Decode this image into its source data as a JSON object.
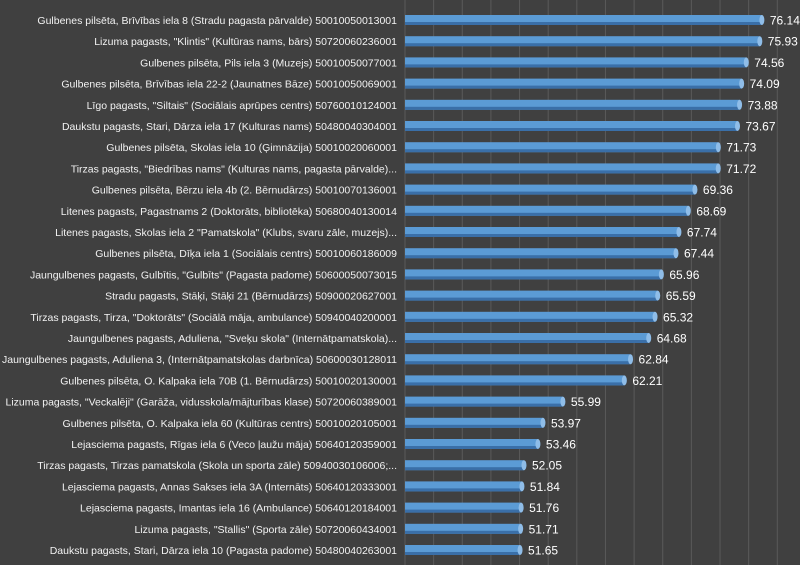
{
  "chart_data": {
    "type": "bar",
    "orientation": "horizontal",
    "title": "",
    "xlabel": "",
    "ylabel": "",
    "grid": true,
    "xlim": [
      40,
      80
    ],
    "categories": [
      "Gulbenes pilsēta, Brīvības iela 8 (Stradu pagasta pārvalde) 50010050013001",
      "Lizuma pagasts, \"Klintis\" (Kultūras nams, bārs) 50720060236001",
      "Gulbenes pilsēta, Pils iela 3 (Muzejs) 50010050077001",
      "Gulbenes pilsēta, Brīvības iela 22-2 (Jaunatnes Bāze) 50010050069001",
      "Līgo pagasts, \"Siltais\" (Sociālais aprūpes centrs) 50760010124001",
      "Daukstu pagasts, Stari, Dārza iela 17 (Kulturas nams) 50480040304001",
      "Gulbenes pilsēta, Skolas iela 10 (Ģimnāzija) 50010020060001",
      "Tirzas pagasts, \"Biedrības nams\" (Kulturas nams, pagasta pārvalde)...",
      "Gulbenes pilsēta, Bērzu iela 4b (2. Bērnudārzs) 50010070136001",
      "Litenes pagasts, Pagastnams 2 (Doktorāts, bibliotēka) 50680040130014",
      "Litenes pagasts, Skolas iela 2 \"Pamatskola\" (Klubs, svaru zāle, muzejs)...",
      "Gulbenes pilsēta, Dīķa iela 1 (Sociālais centrs) 50010060186009",
      "Jaungulbenes pagasts, Gulbītis, \"Gulbīts\" (Pagasta padome) 50600050073015",
      "Stradu pagasts, Stāķi, Stāķi 21 (Bērnudārzs) 50900020627001",
      "Tirzas pagasts, Tirza, \"Doktorāts\" (Sociālā māja, ambulance) 50940040200001",
      "Jaungulbenes pagasts, Aduliena, \"Sveķu skola\" (Internātpamatskola)...",
      "Jaungulbenes pagasts, Aduliena 3, (Internātpamatskolas darbnīca) 50600030128011",
      "Gulbenes pilsēta, O. Kalpaka iela 70B (1. Bērnudārzs) 50010020130001",
      "Lizuma pagasts, \"Veckalēji\" (Garāža, vidusskola/mājturības klase) 50720060389001",
      "Gulbenes pilsēta, O. Kalpaka iela 60 (Kultūras centrs) 50010020105001",
      "Lejasciema pagasts, Rīgas iela 6 (Veco ļaužu māja) 50640120359001",
      "Tirzas pagasts, Tirzas pamatskola (Skola un sporta zāle) 50940030106006;...",
      "Lejasciema pagasts, Annas Sakses iela 3A (Internāts) 50640120333001",
      "Lejasciema pagasts, Imantas iela 16 (Ambulance) 50640120184001",
      "Lizuma pagasts, \"Stallis\" (Sporta zāle) 50720060434001",
      "Daukstu pagasts, Stari, Dārza iela 10 (Pagasta padome) 50480040263001"
    ],
    "values": [
      76.14,
      75.93,
      74.56,
      74.09,
      73.88,
      73.67,
      71.73,
      71.72,
      69.36,
      68.69,
      67.74,
      67.44,
      65.96,
      65.59,
      65.32,
      64.68,
      62.84,
      62.21,
      55.99,
      53.97,
      53.46,
      52.05,
      51.84,
      51.76,
      51.71,
      51.65
    ],
    "value_labels": [
      "76.14",
      "75.93",
      "74.56",
      "74.09",
      "73.88",
      "73.67",
      "71.73",
      "71.72",
      "69.36",
      "68.69",
      "67.74",
      "67.44",
      "65.96",
      "65.59",
      "65.32",
      "64.68",
      "62.84",
      "62.21",
      "55.99",
      "53.97",
      "53.46",
      "52.05",
      "51.84",
      "51.76",
      "51.71",
      "51.65"
    ],
    "colors": {
      "background": "#404040",
      "bar": "#5b9bd5",
      "bar_dark": "#3a6fa8",
      "grid": "#5a5a5a",
      "text": "#f2f2f2"
    }
  }
}
